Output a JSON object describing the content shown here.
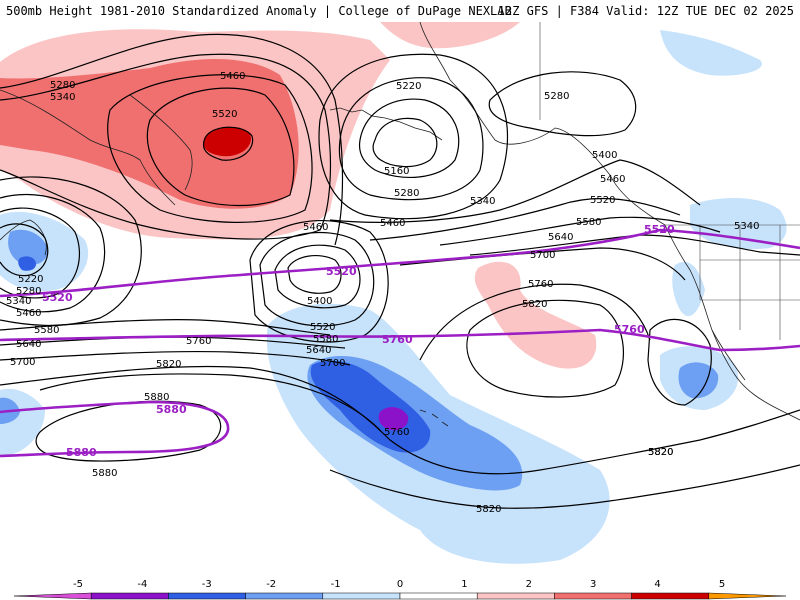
{
  "header": {
    "title_left": "500mb Height 1981-2010 Standardized Anomaly | College of DuPage NEXLAB",
    "title_right": "12Z GFS | F384 Valid: 12Z TUE DEC 02 2025"
  },
  "colors": {
    "ref_line": "#9b1fc4",
    "contour": "#000000",
    "anom_neg_1": "#c7e2fb",
    "anom_neg_2": "#6d9ff2",
    "anom_neg_3": "#2f5fe3",
    "anom_neg_4": "#8b12c8",
    "anom_pos_1": "#fbc5c5",
    "anom_pos_2": "#f07070",
    "anom_pos_3": "#cc0000"
  },
  "contour_labels": [
    {
      "id": "c5280a",
      "text": "5280"
    },
    {
      "id": "c5340a",
      "text": "5340"
    },
    {
      "id": "c5460a",
      "text": "5460"
    },
    {
      "id": "c5520a",
      "text": "5520"
    },
    {
      "id": "c5220a",
      "text": "5220"
    },
    {
      "id": "c5160a",
      "text": "5160"
    },
    {
      "id": "c5280b",
      "text": "5280"
    },
    {
      "id": "c5340b",
      "text": "5340"
    },
    {
      "id": "c5460b",
      "text": "5460"
    },
    {
      "id": "c5280c",
      "text": "5280"
    },
    {
      "id": "c5400a",
      "text": "5400"
    },
    {
      "id": "c5460c",
      "text": "5460"
    },
    {
      "id": "c5520b",
      "text": "5520"
    },
    {
      "id": "c5580a",
      "text": "5580"
    },
    {
      "id": "c5640a",
      "text": "5640"
    },
    {
      "id": "c5700a",
      "text": "5700"
    },
    {
      "id": "c5760a",
      "text": "5760"
    },
    {
      "id": "c5820a",
      "text": "5820"
    },
    {
      "id": "c5340c",
      "text": "5340"
    },
    {
      "id": "c5460d",
      "text": "5460"
    },
    {
      "id": "c5400b",
      "text": "5400"
    },
    {
      "id": "c5520c",
      "text": "5520"
    },
    {
      "id": "c5580b",
      "text": "5580"
    },
    {
      "id": "c5640b",
      "text": "5640"
    },
    {
      "id": "c5700b",
      "text": "5700"
    },
    {
      "id": "c5760b",
      "text": "5760"
    },
    {
      "id": "c5820b",
      "text": "5820"
    },
    {
      "id": "c5220b",
      "text": "5220"
    },
    {
      "id": "c5280d",
      "text": "5280"
    },
    {
      "id": "c5340d",
      "text": "5340"
    },
    {
      "id": "c5460e",
      "text": "5460"
    },
    {
      "id": "c5580c",
      "text": "5580"
    },
    {
      "id": "c5640c",
      "text": "5640"
    },
    {
      "id": "c5700c",
      "text": "5700"
    },
    {
      "id": "c5760c",
      "text": "5760"
    },
    {
      "id": "c5820c",
      "text": "5820"
    },
    {
      "id": "c5880a",
      "text": "5880"
    },
    {
      "id": "c5880b",
      "text": "5880"
    },
    {
      "id": "c5820d",
      "text": "5820"
    },
    {
      "id": "c5820e",
      "text": "5820"
    }
  ],
  "ref_labels": [
    {
      "id": "r5520a",
      "text": "5520"
    },
    {
      "id": "r5520b",
      "text": "5520"
    },
    {
      "id": "r5520c",
      "text": "5520"
    },
    {
      "id": "r5760a",
      "text": "5760"
    },
    {
      "id": "r5760b",
      "text": "5760"
    },
    {
      "id": "r5880a",
      "text": "5880"
    },
    {
      "id": "r5880b",
      "text": "5880"
    }
  ],
  "colorbar": {
    "ticks": [
      "-5",
      "-4",
      "-3",
      "-2",
      "-1",
      "0",
      "1",
      "2",
      "3",
      "4",
      "5"
    ],
    "colors": [
      "#d94fd9",
      "#8b12c8",
      "#2f5fe3",
      "#6d9ff2",
      "#c7e2fb",
      "#ffffff",
      "#fbc5c5",
      "#f07070",
      "#cc0000",
      "#ff9900"
    ]
  }
}
